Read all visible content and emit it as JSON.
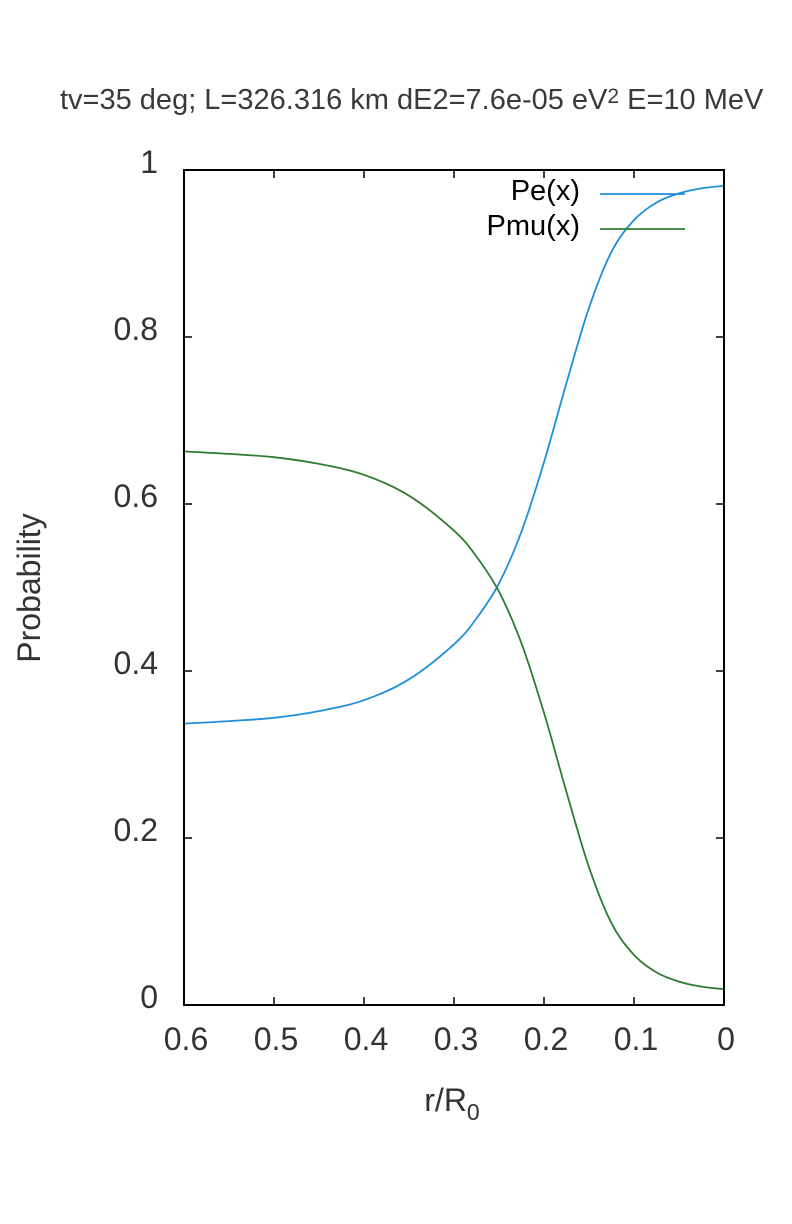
{
  "chart_data": {
    "type": "line",
    "title_main": "tv=35 deg; L=326.316 km dE2=7.6e-05 eV",
    "title_sup": "2",
    "title_tail": " E=10 MeV",
    "xlabel_main": "r/R",
    "xlabel_sub": "0",
    "ylabel": "Probability",
    "xlim": [
      0.6,
      0
    ],
    "ylim": [
      0,
      1
    ],
    "x_ticks": [
      "0.6",
      "0.5",
      "0.4",
      "0.3",
      "0.2",
      "0.1",
      "0"
    ],
    "y_ticks": [
      "0",
      "0.2",
      "0.4",
      "0.6",
      "0.8",
      "1"
    ],
    "legend_position": "top-right",
    "x": [
      0.6,
      0.55,
      0.5,
      0.45,
      0.4,
      0.35,
      0.3,
      0.275,
      0.25,
      0.225,
      0.2,
      0.175,
      0.15,
      0.125,
      0.1,
      0.075,
      0.05,
      0.025,
      0
    ],
    "series": [
      {
        "name": "Pe(x)",
        "color": "#1f8fdc",
        "values": [
          0.337,
          0.34,
          0.344,
          0.352,
          0.365,
          0.39,
          0.432,
          0.463,
          0.505,
          0.567,
          0.65,
          0.745,
          0.835,
          0.902,
          0.94,
          0.961,
          0.972,
          0.978,
          0.981
        ]
      },
      {
        "name": "Pmu(x)",
        "color": "#2e7d2e",
        "values": [
          0.663,
          0.66,
          0.656,
          0.648,
          0.635,
          0.61,
          0.568,
          0.537,
          0.495,
          0.433,
          0.35,
          0.255,
          0.165,
          0.098,
          0.06,
          0.039,
          0.028,
          0.022,
          0.019
        ]
      }
    ]
  }
}
